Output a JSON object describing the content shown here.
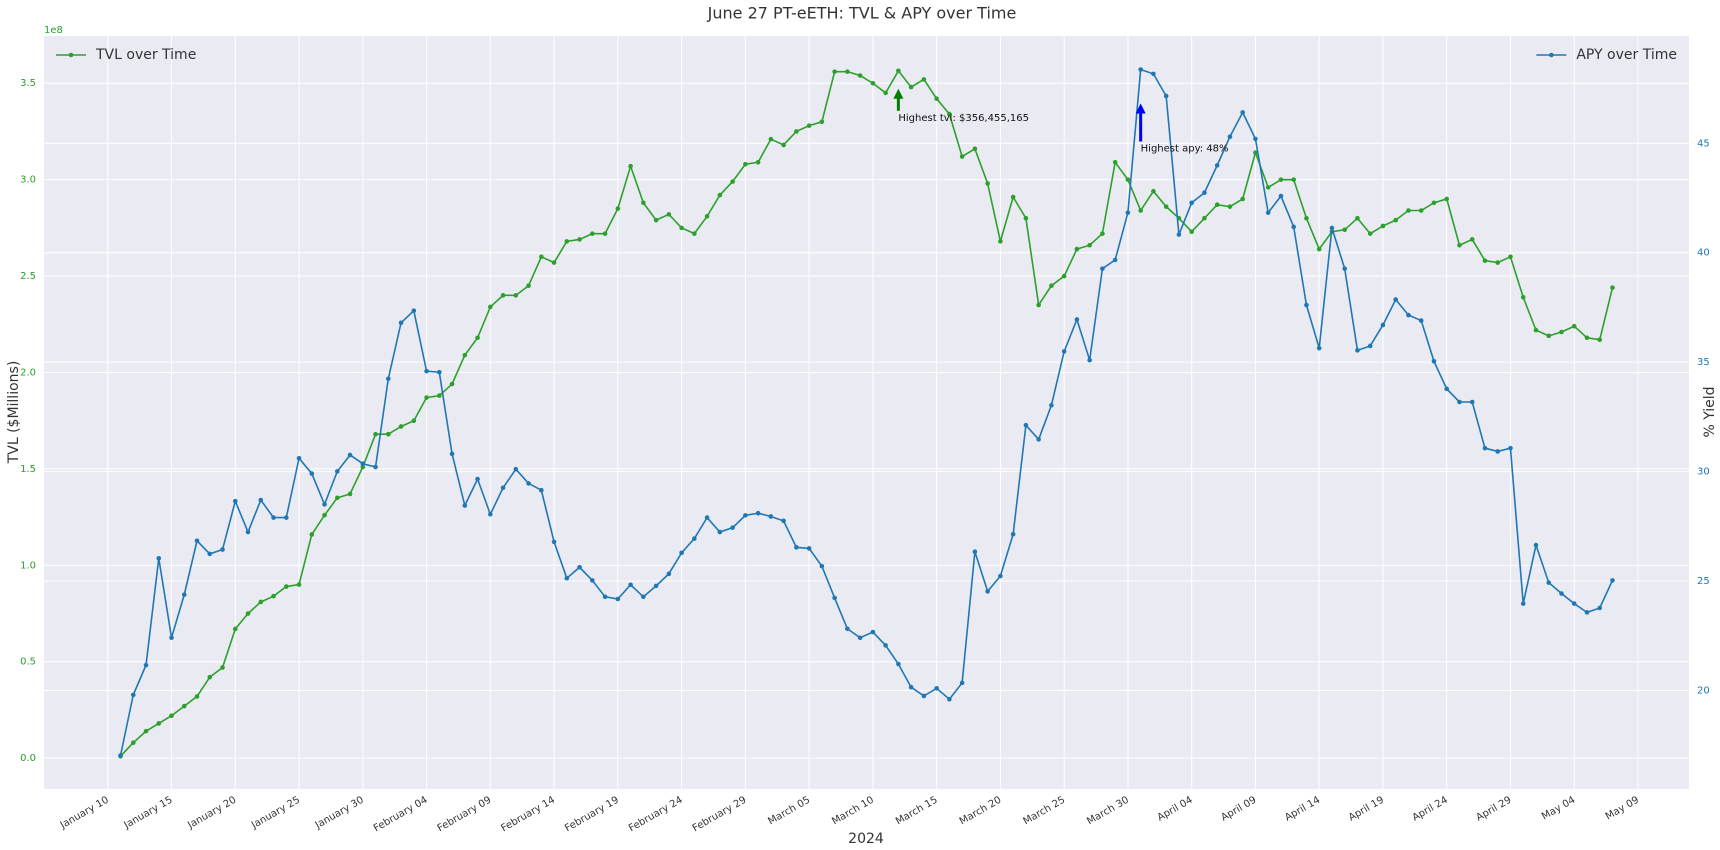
{
  "chart_data": {
    "type": "line",
    "title": "June 27 PT-eETH: TVL & APY over Time",
    "xlabel": "2024",
    "ylabel": "TVL ($Millions)",
    "y2label": "% Yield",
    "y_offset_label": "1e8",
    "grid": true,
    "x": [
      "2024-01-11",
      "2024-01-12",
      "2024-01-13",
      "2024-01-14",
      "2024-01-15",
      "2024-01-16",
      "2024-01-17",
      "2024-01-18",
      "2024-01-19",
      "2024-01-20",
      "2024-01-21",
      "2024-01-22",
      "2024-01-23",
      "2024-01-24",
      "2024-01-25",
      "2024-01-26",
      "2024-01-27",
      "2024-01-28",
      "2024-01-29",
      "2024-01-30",
      "2024-01-31",
      "2024-02-01",
      "2024-02-02",
      "2024-02-03",
      "2024-02-04",
      "2024-02-05",
      "2024-02-06",
      "2024-02-07",
      "2024-02-08",
      "2024-02-09",
      "2024-02-10",
      "2024-02-11",
      "2024-02-12",
      "2024-02-13",
      "2024-02-14",
      "2024-02-15",
      "2024-02-16",
      "2024-02-17",
      "2024-02-18",
      "2024-02-19",
      "2024-02-20",
      "2024-02-21",
      "2024-02-22",
      "2024-02-23",
      "2024-02-24",
      "2024-02-25",
      "2024-02-26",
      "2024-02-27",
      "2024-02-28",
      "2024-02-29",
      "2024-03-01",
      "2024-03-02",
      "2024-03-03",
      "2024-03-04",
      "2024-03-05",
      "2024-03-06",
      "2024-03-07",
      "2024-03-08",
      "2024-03-09",
      "2024-03-10",
      "2024-03-11",
      "2024-03-12",
      "2024-03-13",
      "2024-03-14",
      "2024-03-15",
      "2024-03-16",
      "2024-03-17",
      "2024-03-18",
      "2024-03-19",
      "2024-03-20",
      "2024-03-21",
      "2024-03-22",
      "2024-03-23",
      "2024-03-24",
      "2024-03-25",
      "2024-03-26",
      "2024-03-27",
      "2024-03-28",
      "2024-03-29",
      "2024-03-30",
      "2024-03-31",
      "2024-04-01",
      "2024-04-02",
      "2024-04-03",
      "2024-04-04",
      "2024-04-05",
      "2024-04-06",
      "2024-04-07",
      "2024-04-08",
      "2024-04-09",
      "2024-04-10",
      "2024-04-11",
      "2024-04-12",
      "2024-04-13",
      "2024-04-14",
      "2024-04-15",
      "2024-04-16",
      "2024-04-17",
      "2024-04-18",
      "2024-04-19",
      "2024-04-20",
      "2024-04-21",
      "2024-04-22",
      "2024-04-23",
      "2024-04-24",
      "2024-04-25",
      "2024-04-26",
      "2024-04-27",
      "2024-04-28",
      "2024-04-29",
      "2024-04-30",
      "2024-05-01",
      "2024-05-02",
      "2024-05-03",
      "2024-05-04",
      "2024-05-05",
      "2024-05-06",
      "2024-05-07"
    ],
    "xlim": [
      "2024-01-05",
      "2024-05-13"
    ],
    "xticks": [
      {
        "value": "2024-01-10",
        "label": "January 10"
      },
      {
        "value": "2024-01-15",
        "label": "January 15"
      },
      {
        "value": "2024-01-20",
        "label": "January 20"
      },
      {
        "value": "2024-01-25",
        "label": "January 25"
      },
      {
        "value": "2024-01-30",
        "label": "January 30"
      },
      {
        "value": "2024-02-04",
        "label": "February 04"
      },
      {
        "value": "2024-02-09",
        "label": "February 09"
      },
      {
        "value": "2024-02-14",
        "label": "February 14"
      },
      {
        "value": "2024-02-19",
        "label": "February 19"
      },
      {
        "value": "2024-02-24",
        "label": "February 24"
      },
      {
        "value": "2024-02-29",
        "label": "February 29"
      },
      {
        "value": "2024-03-05",
        "label": "March 05"
      },
      {
        "value": "2024-03-10",
        "label": "March 10"
      },
      {
        "value": "2024-03-15",
        "label": "March 15"
      },
      {
        "value": "2024-03-20",
        "label": "March 20"
      },
      {
        "value": "2024-03-25",
        "label": "March 25"
      },
      {
        "value": "2024-03-30",
        "label": "March 30"
      },
      {
        "value": "2024-04-04",
        "label": "April 04"
      },
      {
        "value": "2024-04-09",
        "label": "April 09"
      },
      {
        "value": "2024-04-14",
        "label": "April 14"
      },
      {
        "value": "2024-04-19",
        "label": "April 19"
      },
      {
        "value": "2024-04-24",
        "label": "April 24"
      },
      {
        "value": "2024-04-29",
        "label": "April 29"
      },
      {
        "value": "2024-05-04",
        "label": "May 04"
      },
      {
        "value": "2024-05-09",
        "label": "May 09"
      }
    ],
    "ylim": [
      -0.16,
      3.745
    ],
    "yticks": [
      {
        "value": 0,
        "label": "0.0"
      },
      0.5,
      {
        "value": 1,
        "label": "1.0"
      },
      1.5,
      {
        "value": 2,
        "label": "2.0"
      },
      2.5,
      {
        "value": 3,
        "label": "3.0"
      },
      3.5
    ],
    "y2lim": [
      15.5,
      49.9
    ],
    "y2ticks": [
      20,
      25,
      30,
      35,
      40,
      45
    ],
    "series": [
      {
        "name": "TVL over Time",
        "color": "#2ca02c",
        "legend_loc": "upper left",
        "annotation": "Highest tvl: $356,455,165",
        "annotation_color": "green",
        "values": [
          0.01,
          0.08,
          0.14,
          0.18,
          0.22,
          0.27,
          0.32,
          0.42,
          0.47,
          0.67,
          0.75,
          0.81,
          0.84,
          0.89,
          0.9,
          1.16,
          1.26,
          1.35,
          1.37,
          1.51,
          1.68,
          1.68,
          1.72,
          1.75,
          1.87,
          1.88,
          1.94,
          2.09,
          2.18,
          2.34,
          2.4,
          2.4,
          2.45,
          2.6,
          2.57,
          2.68,
          2.69,
          2.72,
          2.72,
          2.85,
          3.07,
          2.88,
          2.79,
          2.82,
          2.75,
          2.72,
          2.81,
          2.92,
          2.99,
          3.08,
          3.09,
          3.21,
          3.18,
          3.25,
          3.28,
          3.3,
          3.56,
          3.56,
          3.54,
          3.5,
          3.45,
          3.5646,
          3.48,
          3.52,
          3.42,
          3.34,
          3.12,
          3.16,
          2.98,
          2.68,
          2.91,
          2.8,
          2.35,
          2.45,
          2.5,
          2.64,
          2.66,
          2.72,
          3.09,
          3.0,
          2.84,
          2.94,
          2.86,
          2.8,
          2.73,
          2.8,
          2.87,
          2.86,
          2.9,
          3.14,
          2.96,
          3.0,
          3.0,
          2.8,
          2.64,
          2.73,
          2.74,
          2.8,
          2.72,
          2.76,
          2.79,
          2.84,
          2.84,
          2.88,
          2.9,
          2.66,
          2.69,
          2.58,
          2.57,
          2.6,
          2.39,
          2.22,
          2.19,
          2.21,
          2.24,
          2.18,
          2.17,
          2.44
        ]
      },
      {
        "name": "APY over Time",
        "color": "#1f77b4",
        "axis": "y2",
        "legend_loc": "upper right",
        "annotation": "Highest apy: 48%",
        "annotation_color": "blue",
        "values": [
          17.03,
          19.8,
          21.16,
          26.04,
          22.41,
          24.38,
          26.84,
          26.24,
          26.44,
          28.65,
          27.24,
          28.7,
          27.9,
          27.9,
          30.61,
          29.91,
          28.5,
          30.01,
          30.76,
          30.36,
          30.21,
          34.24,
          36.8,
          37.35,
          34.59,
          34.54,
          30.81,
          28.45,
          29.66,
          28.05,
          29.26,
          30.11,
          29.46,
          29.15,
          26.79,
          25.13,
          25.63,
          25.03,
          24.28,
          24.18,
          24.83,
          24.28,
          24.78,
          25.33,
          26.29,
          26.94,
          27.9,
          27.24,
          27.44,
          28.0,
          28.1,
          27.95,
          27.75,
          26.54,
          26.49,
          25.68,
          24.23,
          22.82,
          22.41,
          22.67,
          22.06,
          21.21,
          20.15,
          19.75,
          20.1,
          19.6,
          20.35,
          26.34,
          24.53,
          25.23,
          27.14,
          32.12,
          31.47,
          33.03,
          35.49,
          36.95,
          35.09,
          39.27,
          39.67,
          41.83,
          48.37,
          48.17,
          47.16,
          40.83,
          42.28,
          42.74,
          43.99,
          45.3,
          46.41,
          45.2,
          41.83,
          42.59,
          41.18,
          37.61,
          35.64,
          41.13,
          39.27,
          35.54,
          35.74,
          36.7,
          37.86,
          37.15,
          36.9,
          35.04,
          33.78,
          33.18,
          33.18,
          31.07,
          30.92,
          31.07,
          23.97,
          26.64,
          24.93,
          24.43,
          23.97,
          23.57,
          23.77,
          25.03
        ]
      }
    ]
  }
}
